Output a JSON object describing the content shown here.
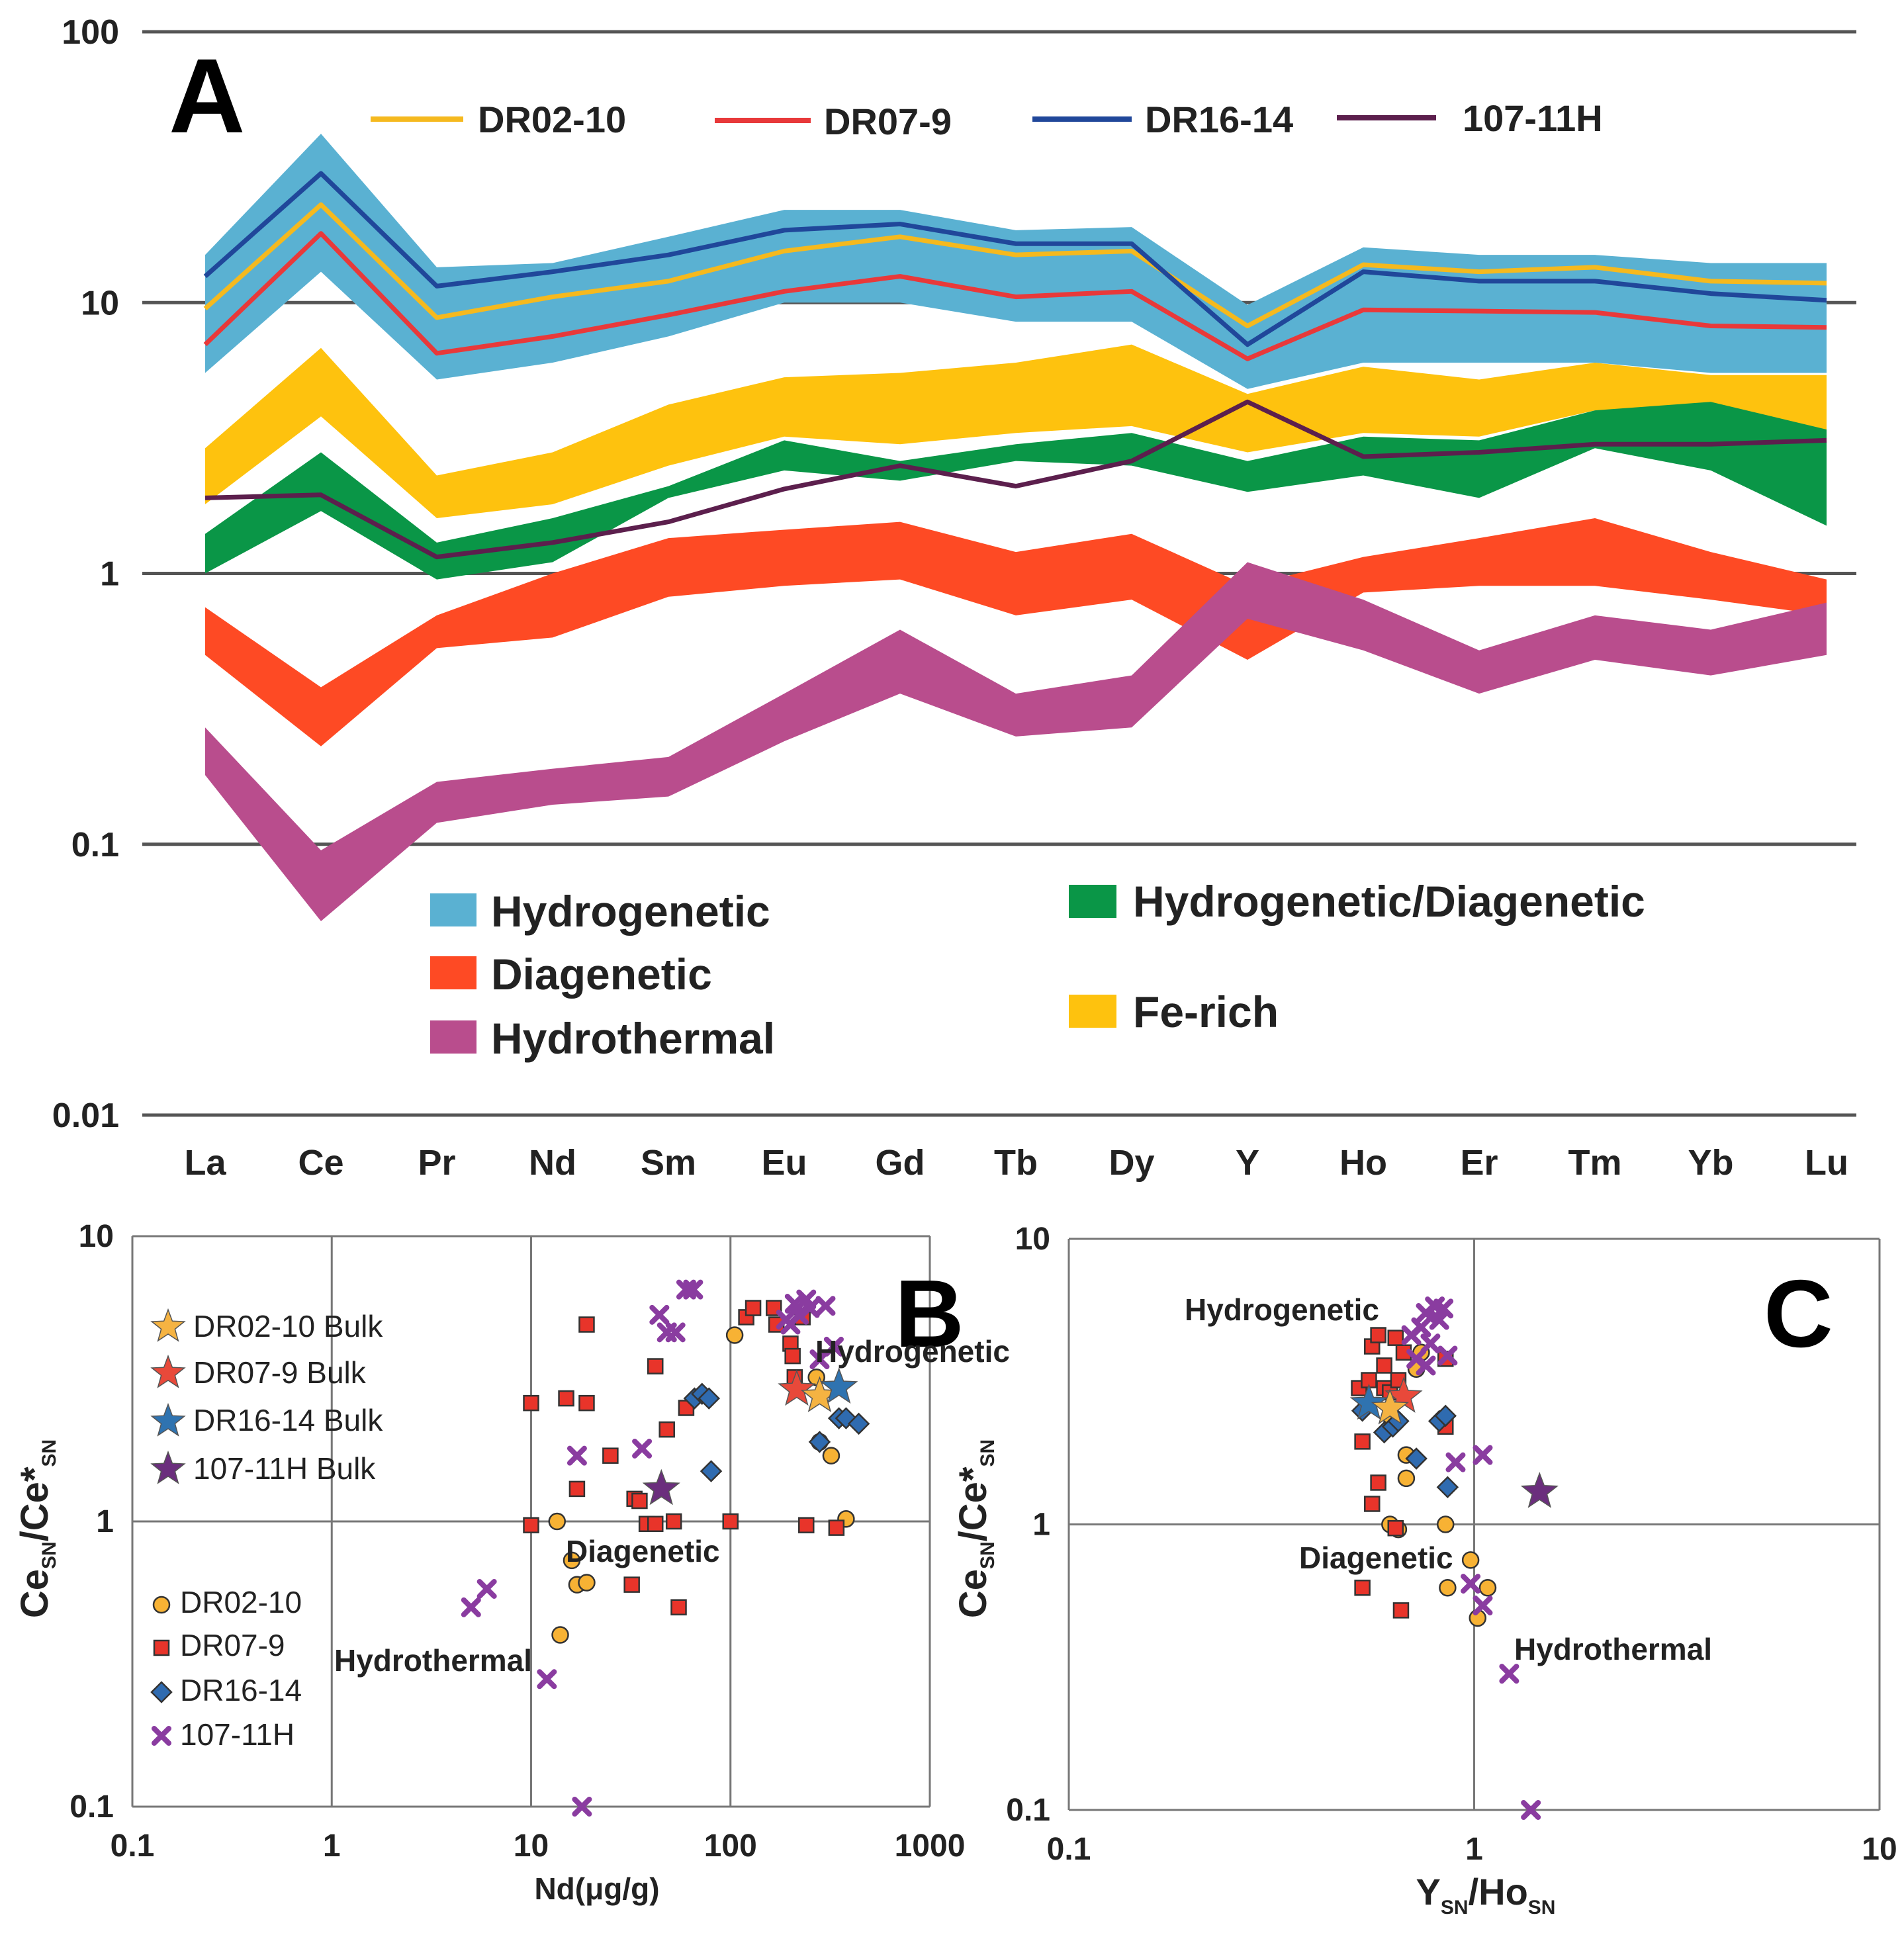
{
  "figure": {
    "panel_labels": {
      "a": "A",
      "b": "B",
      "c": "C"
    }
  },
  "chart_data": [
    {
      "id": "A",
      "type": "line",
      "title": "",
      "scale": "log",
      "ylim": [
        0.01,
        100
      ],
      "y_ticks": [
        {
          "value": 100,
          "label": "100"
        },
        {
          "value": 10,
          "label": "10"
        },
        {
          "value": 1,
          "label": "1"
        },
        {
          "value": 0.1,
          "label": "0.1"
        },
        {
          "value": 0.01,
          "label": "0.01"
        }
      ],
      "categories": [
        "La",
        "Ce",
        "Pr",
        "Nd",
        "Sm",
        "Eu",
        "Gd",
        "Tb",
        "Dy",
        "Y",
        "Ho",
        "Er",
        "Tm",
        "Yb",
        "Lu"
      ],
      "bands": [
        {
          "name": "Hydrogenetic",
          "color": "#5ab1d2",
          "upper": [
            15,
            42,
            13.5,
            14,
            17.5,
            22,
            22,
            18.5,
            19,
            9.8,
            16,
            15,
            15,
            14,
            14
          ],
          "lower": [
            5.5,
            13,
            5.2,
            6,
            7.5,
            10,
            10,
            8.5,
            8.5,
            4.8,
            6,
            6,
            6,
            5.5,
            5.5
          ]
        },
        {
          "name": "Fe-rich",
          "color": "#fec20e",
          "upper": [
            2.9,
            6.8,
            2.3,
            2.8,
            4.2,
            5.3,
            5.5,
            6,
            7,
            4.6,
            5.8,
            5.2,
            6,
            5.4,
            5.4
          ],
          "lower": [
            1.8,
            3.8,
            1.6,
            1.8,
            2.5,
            3.2,
            3,
            3.3,
            3.5,
            2.8,
            3.3,
            3.2,
            4,
            4,
            3.1
          ]
        },
        {
          "name": "Hydrogenetic/Diagenetic",
          "color": "#0a9647",
          "upper": [
            1.4,
            2.8,
            1.3,
            1.6,
            2.1,
            3.1,
            2.6,
            3,
            3.3,
            2.6,
            3.2,
            3.1,
            4,
            4.3,
            3.4
          ],
          "lower": [
            1,
            1.7,
            0.95,
            1.1,
            1.9,
            2.4,
            2.2,
            2.6,
            2.5,
            2,
            2.3,
            1.9,
            2.9,
            2.4,
            1.5
          ]
        },
        {
          "name": "Diagenetic",
          "color": "#fe4a24",
          "upper": [
            0.75,
            0.38,
            0.7,
            1,
            1.35,
            1.45,
            1.55,
            1.2,
            1.4,
            0.9,
            1.15,
            1.35,
            1.6,
            1.2,
            0.95
          ],
          "lower": [
            0.5,
            0.23,
            0.53,
            0.58,
            0.82,
            0.9,
            0.95,
            0.7,
            0.8,
            0.48,
            0.85,
            0.9,
            0.9,
            0.8,
            0.7
          ]
        },
        {
          "name": "Hydrothermal",
          "color": "#b94d8d",
          "upper": [
            0.27,
            0.095,
            0.17,
            0.19,
            0.21,
            0.36,
            0.62,
            0.36,
            0.42,
            1.1,
            0.8,
            0.52,
            0.7,
            0.62,
            0.78
          ],
          "lower": [
            0.18,
            0.052,
            0.12,
            0.14,
            0.15,
            0.24,
            0.36,
            0.25,
            0.27,
            0.68,
            0.52,
            0.36,
            0.48,
            0.42,
            0.5
          ]
        }
      ],
      "series": [
        {
          "name": "DR02-10",
          "color": "#f5b91e",
          "values": [
            9.5,
            23,
            8.8,
            10.5,
            12,
            15.5,
            17.5,
            15,
            15.5,
            8.2,
            13.8,
            13,
            13.5,
            12,
            11.8
          ]
        },
        {
          "name": "DR07-9",
          "color": "#e8393a",
          "values": [
            7,
            18,
            6.5,
            7.5,
            9,
            11,
            12.5,
            10.5,
            11,
            6.2,
            9.4,
            9.3,
            9.2,
            8.2,
            8.1
          ]
        },
        {
          "name": "DR16-14",
          "color": "#20479a",
          "values": [
            12.5,
            30,
            11.5,
            13,
            15,
            18.5,
            19.5,
            16.5,
            16.5,
            7,
            13,
            12,
            12,
            10.8,
            10.2
          ]
        },
        {
          "name": "107-11H",
          "color": "#5c1f4d",
          "values": [
            1.9,
            1.95,
            1.15,
            1.3,
            1.55,
            2.05,
            2.5,
            2.1,
            2.6,
            4.3,
            2.7,
            2.8,
            3,
            3,
            3.1
          ]
        }
      ],
      "band_legend": [
        "Hydrogenetic",
        "Diagenetic",
        "Hydrothermal",
        "Hydrogenetic/Diagenetic",
        "Fe-rich"
      ]
    },
    {
      "id": "B",
      "type": "scatter",
      "scale": "log-log",
      "xlabel": "Nd(μg/g)",
      "ylabel_main": "Ce",
      "ylabel_sub": "SN",
      "ylabel_mid": "/Ce*",
      "xlim": [
        0.1,
        1000
      ],
      "ylim": [
        0.1,
        10
      ],
      "x_ticks": [
        {
          "value": 0.1,
          "label": "0.1"
        },
        {
          "value": 1,
          "label": "1"
        },
        {
          "value": 10,
          "label": "10"
        },
        {
          "value": 100,
          "label": "100"
        },
        {
          "value": 1000,
          "label": "1000"
        }
      ],
      "y_ticks": [
        {
          "value": 10,
          "label": "10"
        },
        {
          "value": 1,
          "label": "1"
        },
        {
          "value": 0.1,
          "label": "0.1"
        }
      ],
      "annotations": [
        "Hydrogenetic",
        "Diagenetic",
        "Hydrothermal"
      ],
      "legend": [
        {
          "name": "DR02-10 Bulk",
          "marker": "star",
          "color": "#f5b342"
        },
        {
          "name": "DR07-9 Bulk",
          "marker": "star",
          "color": "#e8493a"
        },
        {
          "name": "DR16-14 Bulk",
          "marker": "star",
          "color": "#2f73b0"
        },
        {
          "name": "107-11H Bulk",
          "marker": "star",
          "color": "#6b2e7d"
        },
        {
          "name": "DR02-10",
          "marker": "circle",
          "color": "#f7b234"
        },
        {
          "name": "DR07-9",
          "marker": "square",
          "color": "#e8342a"
        },
        {
          "name": "DR16-14",
          "marker": "diamond",
          "color": "#2f6bb0"
        },
        {
          "name": "107-11H",
          "marker": "cross",
          "color": "#8a3ca0"
        }
      ],
      "series": [
        {
          "name": "DR02-10",
          "points": [
            [
              105,
              4.5
            ],
            [
              13.5,
              1.0
            ],
            [
              16,
              0.73
            ],
            [
              17,
              0.6
            ],
            [
              19,
              0.61
            ],
            [
              14,
              0.4
            ],
            [
              280,
              1.9
            ],
            [
              320,
              1.7
            ],
            [
              380,
              1.02
            ],
            [
              270,
              3.2
            ]
          ]
        },
        {
          "name": "DR07-9",
          "points": [
            [
              10,
              2.6
            ],
            [
              15,
              2.7
            ],
            [
              19,
              4.9
            ],
            [
              19,
              2.6
            ],
            [
              17,
              1.3
            ],
            [
              25,
              1.7
            ],
            [
              33,
              1.2
            ],
            [
              35,
              1.18
            ],
            [
              38,
              0.98
            ],
            [
              42,
              0.98
            ],
            [
              42,
              3.5
            ],
            [
              48,
              2.1
            ],
            [
              52,
              1.0
            ],
            [
              55,
              0.5
            ],
            [
              60,
              2.5
            ],
            [
              100,
              1.0
            ],
            [
              120,
              5.2
            ],
            [
              130,
              5.6
            ],
            [
              165,
              5.6
            ],
            [
              170,
              4.9
            ],
            [
              200,
              4.2
            ],
            [
              205,
              3.8
            ],
            [
              210,
              3.2
            ],
            [
              230,
              5.2
            ],
            [
              240,
              0.97
            ],
            [
              340,
              0.95
            ],
            [
              10,
              0.97
            ],
            [
              32,
              0.6
            ]
          ]
        },
        {
          "name": "DR16-14",
          "points": [
            [
              66,
              2.7
            ],
            [
              72,
              2.8
            ],
            [
              78,
              2.7
            ],
            [
              80,
              1.5
            ],
            [
              350,
              2.3
            ],
            [
              380,
              2.3
            ],
            [
              440,
              2.2
            ],
            [
              280,
              1.9
            ]
          ]
        },
        {
          "name": "107-11H",
          "points": [
            [
              5,
              0.5
            ],
            [
              6,
              0.58
            ],
            [
              12,
              0.28
            ],
            [
              18,
              0.1
            ],
            [
              17,
              1.7
            ],
            [
              36,
              1.8
            ],
            [
              44,
              5.3
            ],
            [
              48,
              4.6
            ],
            [
              53,
              4.6
            ],
            [
              60,
              6.5
            ],
            [
              65,
              6.5
            ],
            [
              190,
              5.1
            ],
            [
              200,
              4.9
            ],
            [
              210,
              5.8
            ],
            [
              220,
              5.3
            ],
            [
              240,
              6.0
            ],
            [
              250,
              5.6
            ],
            [
              280,
              3.7
            ],
            [
              300,
              5.7
            ],
            [
              330,
              4.1
            ]
          ]
        },
        {
          "name": "Bulk",
          "points": [
            [
              215,
              2.9,
              "DR07-9 Bulk"
            ],
            [
              280,
              2.75,
              "DR02-10 Bulk"
            ],
            [
              350,
              2.95,
              "DR16-14 Bulk"
            ],
            [
              45,
              1.3,
              "107-11H Bulk"
            ]
          ]
        }
      ]
    },
    {
      "id": "C",
      "type": "scatter",
      "scale": "log-log",
      "xlabel_main": "Y",
      "xlabel_sub1": "SN",
      "xlabel_mid": "/Ho",
      "xlabel_sub2": "SN",
      "ylabel_main": "Ce",
      "ylabel_sub": "SN",
      "ylabel_mid": "/Ce*",
      "xlim": [
        0.1,
        10
      ],
      "ylim": [
        0.1,
        10
      ],
      "x_ticks": [
        {
          "value": 0.1,
          "label": "0.1"
        },
        {
          "value": 1,
          "label": "1"
        },
        {
          "value": 10,
          "label": "10"
        }
      ],
      "y_ticks": [
        {
          "value": 10,
          "label": "10"
        },
        {
          "value": 1,
          "label": "1"
        },
        {
          "value": 0.1,
          "label": "0.1"
        }
      ],
      "annotations": [
        "Hydrogenetic",
        "Diagenetic",
        "Hydrothermal"
      ],
      "series": [
        {
          "name": "DR02-10",
          "points": [
            [
              0.62,
              2.4
            ],
            [
              0.68,
              1.75
            ],
            [
              0.68,
              1.45
            ],
            [
              0.62,
              1.0
            ],
            [
              0.65,
              0.96
            ],
            [
              0.85,
              1.0
            ],
            [
              0.98,
              0.75
            ],
            [
              0.86,
              0.6
            ],
            [
              1.08,
              0.6
            ],
            [
              1.02,
              0.47
            ],
            [
              0.74,
              4.0
            ],
            [
              0.72,
              3.5
            ]
          ]
        },
        {
          "name": "DR07-9",
          "points": [
            [
              0.52,
              3.0
            ],
            [
              0.55,
              3.2
            ],
            [
              0.56,
              4.2
            ],
            [
              0.6,
              3.6
            ],
            [
              0.6,
              3.0
            ],
            [
              0.62,
              2.9
            ],
            [
              0.65,
              3.2
            ],
            [
              0.58,
              4.6
            ],
            [
              0.64,
              4.5
            ],
            [
              0.67,
              4.0
            ],
            [
              0.85,
              3.8
            ],
            [
              0.53,
              1.95
            ],
            [
              0.58,
              1.4
            ],
            [
              0.56,
              1.18
            ],
            [
              0.64,
              0.97
            ],
            [
              0.66,
              0.5
            ],
            [
              0.53,
              0.6
            ],
            [
              0.85,
              2.2
            ]
          ]
        },
        {
          "name": "DR16-14",
          "points": [
            [
              0.53,
              2.5
            ],
            [
              0.6,
              2.1
            ],
            [
              0.63,
              2.2
            ],
            [
              0.65,
              2.3
            ],
            [
              0.82,
              2.3
            ],
            [
              0.85,
              2.4
            ],
            [
              0.86,
              1.35
            ],
            [
              0.72,
              1.7
            ]
          ]
        },
        {
          "name": "107-11H",
          "points": [
            [
              0.7,
              4.6
            ],
            [
              0.74,
              4.9
            ],
            [
              0.76,
              5.5
            ],
            [
              0.8,
              5.8
            ],
            [
              0.84,
              5.7
            ],
            [
              0.82,
              5.2
            ],
            [
              0.86,
              3.9
            ],
            [
              0.78,
              4.3
            ],
            [
              0.72,
              3.8
            ],
            [
              0.76,
              3.6
            ],
            [
              0.9,
              1.65
            ],
            [
              1.05,
              1.75
            ],
            [
              0.98,
              0.62
            ],
            [
              1.05,
              0.52
            ],
            [
              1.22,
              0.3
            ],
            [
              1.38,
              0.1
            ]
          ]
        },
        {
          "name": "Bulk",
          "points": [
            [
              0.55,
              2.65,
              "DR16-14 Bulk"
            ],
            [
              0.67,
              2.8,
              "DR07-9 Bulk"
            ],
            [
              0.62,
              2.55,
              "DR02-10 Bulk"
            ],
            [
              1.45,
              1.3,
              "107-11H Bulk"
            ]
          ]
        }
      ]
    }
  ]
}
